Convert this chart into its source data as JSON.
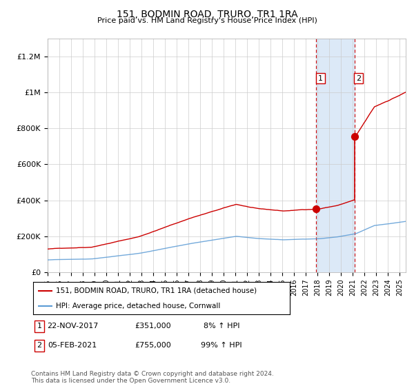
{
  "title": "151, BODMIN ROAD, TRURO, TR1 1RA",
  "subtitle": "Price paid vs. HM Land Registry's House Price Index (HPI)",
  "ylabel_ticks": [
    "£0",
    "£200K",
    "£400K",
    "£600K",
    "£800K",
    "£1M",
    "£1.2M"
  ],
  "ytick_values": [
    0,
    200000,
    400000,
    600000,
    800000,
    1000000,
    1200000
  ],
  "ylim": [
    0,
    1300000
  ],
  "xlim_start": 1995.0,
  "xlim_end": 2025.5,
  "sale1_year": 2017,
  "sale1_month": 11,
  "sale1_price": 351000,
  "sale1_label": "1",
  "sale2_year": 2021,
  "sale2_month": 2,
  "sale2_price": 755000,
  "sale2_label": "2",
  "highlight_color": "#dce9f7",
  "vline_color": "#cc0000",
  "red_line_color": "#cc0000",
  "blue_line_color": "#5b9bd5",
  "legend_line1": "151, BODMIN ROAD, TRURO, TR1 1RA (detached house)",
  "legend_line2": "HPI: Average price, detached house, Cornwall",
  "table_row1": [
    "1",
    "22-NOV-2017",
    "£351,000",
    "8% ↑ HPI"
  ],
  "table_row2": [
    "2",
    "05-FEB-2021",
    "£755,000",
    "99% ↑ HPI"
  ],
  "footer": "Contains HM Land Registry data © Crown copyright and database right 2024.\nThis data is licensed under the Open Government Licence v3.0.",
  "background_color": "#ffffff",
  "grid_color": "#cccccc"
}
